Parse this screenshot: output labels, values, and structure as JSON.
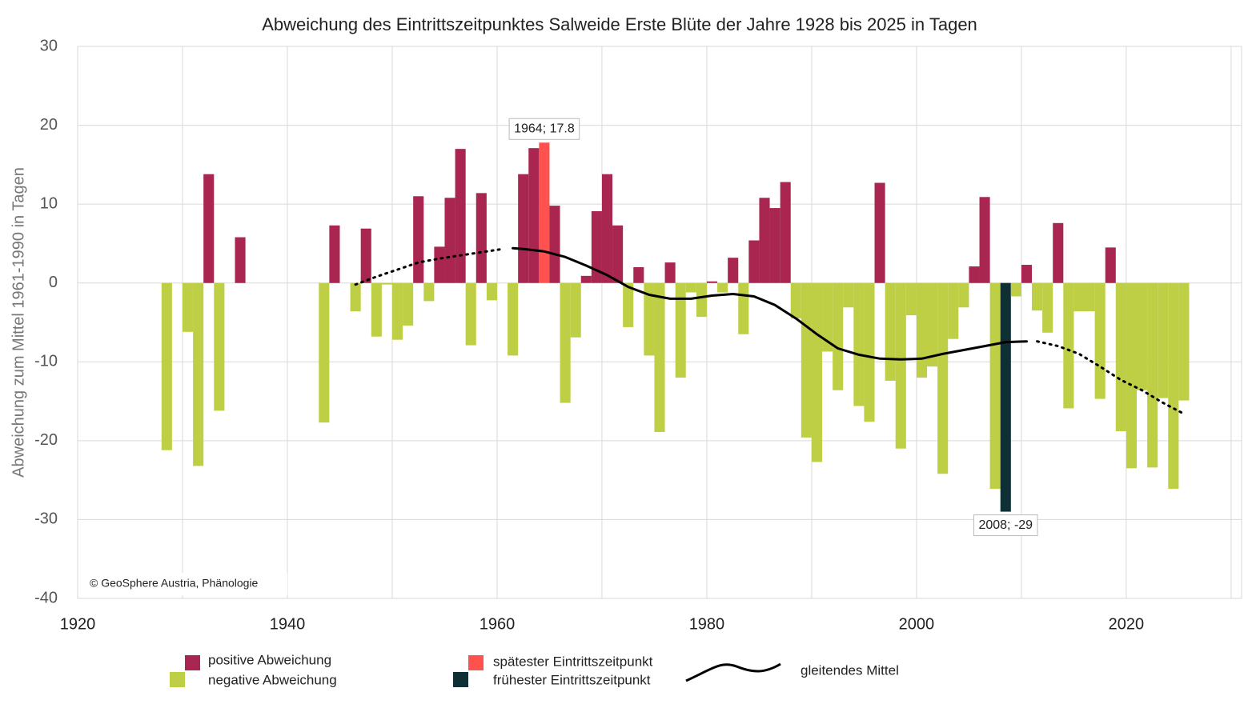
{
  "chart_data": {
    "type": "bar",
    "title": "Abweichung des Eintrittszeitpunktes Salweide Erste Blüte der Jahre 1928 bis 2025 in Tagen",
    "ylabel": "Abweichung zum Mittel 1961-1990 in Tagen",
    "credit": "© GeoSphere Austria, Phänologie",
    "x": [
      1928,
      1930,
      1931,
      1932,
      1933,
      1935,
      1943,
      1944,
      1946,
      1947,
      1948,
      1949,
      1950,
      1951,
      1952,
      1953,
      1954,
      1955,
      1956,
      1957,
      1958,
      1959,
      1961,
      1962,
      1963,
      1964,
      1965,
      1966,
      1967,
      1968,
      1969,
      1970,
      1971,
      1972,
      1973,
      1974,
      1975,
      1976,
      1977,
      1978,
      1979,
      1980,
      1981,
      1982,
      1983,
      1984,
      1985,
      1986,
      1987,
      1988,
      1989,
      1990,
      1991,
      1992,
      1993,
      1994,
      1995,
      1996,
      1997,
      1998,
      1999,
      2000,
      2001,
      2002,
      2003,
      2004,
      2005,
      2006,
      2007,
      2008,
      2009,
      2010,
      2011,
      2012,
      2013,
      2014,
      2015,
      2016,
      2017,
      2018,
      2019,
      2020,
      2021,
      2022,
      2023,
      2024,
      2025
    ],
    "values": [
      -21.2,
      -6.2,
      -23.2,
      13.8,
      -16.2,
      5.8,
      -17.7,
      7.3,
      -3.6,
      6.9,
      -6.8,
      -0.2,
      -7.2,
      -5.4,
      11.0,
      -2.3,
      4.6,
      10.8,
      17.0,
      -7.9,
      11.4,
      -2.2,
      -9.2,
      13.8,
      17.1,
      17.8,
      9.8,
      -15.2,
      -6.9,
      0.9,
      9.1,
      13.8,
      7.3,
      -5.6,
      2.0,
      -9.2,
      -18.9,
      2.6,
      -12.0,
      -1.2,
      -4.3,
      0.2,
      -1.2,
      3.2,
      -6.5,
      5.4,
      10.8,
      9.5,
      12.8,
      -4.5,
      -19.6,
      -22.7,
      -8.7,
      -13.6,
      -3.1,
      -15.6,
      -17.6,
      12.7,
      -12.4,
      -21.0,
      -4.1,
      -12.0,
      -10.6,
      -24.2,
      -7.1,
      -3.1,
      2.1,
      10.9,
      -26.1,
      -29,
      -1.7,
      2.3,
      -3.5,
      -6.3,
      7.6,
      -15.9,
      -3.6,
      -3.6,
      -14.7,
      4.5,
      -18.8,
      -23.5,
      -13.6,
      -23.4,
      -14.6,
      -26.1,
      -14.9
    ],
    "highlights": [
      {
        "label": "1964; 17.8",
        "x": 1964,
        "value": 17.8,
        "color": "#ff524f"
      },
      {
        "label": "2008; -29",
        "x": 2008,
        "value": -29,
        "color": "#0e2f34"
      }
    ],
    "moving_average": {
      "name": "gleitendes Mittel",
      "color": "#000000",
      "segments": [
        {
          "style": "dotted",
          "x": [
            1946,
            1948,
            1950,
            1952,
            1954,
            1956,
            1958,
            1960
          ],
          "values": [
            -0.2,
            0.8,
            1.7,
            2.6,
            3.1,
            3.5,
            3.9,
            4.3
          ]
        },
        {
          "style": "solid",
          "x": [
            1961,
            1962,
            1964,
            1966,
            1968,
            1970,
            1972,
            1974,
            1976,
            1978,
            1980,
            1982,
            1984,
            1986,
            1988,
            1990,
            1992,
            1994,
            1996,
            1998,
            2000,
            2002,
            2004,
            2006,
            2008,
            2010
          ],
          "values": [
            4.4,
            4.3,
            4.0,
            3.3,
            2.2,
            1.0,
            -0.5,
            -1.5,
            -2.0,
            -2.0,
            -1.6,
            -1.4,
            -1.7,
            -2.8,
            -4.5,
            -6.5,
            -8.3,
            -9.1,
            -9.6,
            -9.7,
            -9.6,
            -9.0,
            -8.5,
            -8.0,
            -7.5,
            -7.4
          ]
        },
        {
          "style": "dotted",
          "x": [
            2011,
            2013,
            2015,
            2017,
            2019,
            2021,
            2023,
            2025
          ],
          "values": [
            -7.4,
            -8.0,
            -9.0,
            -10.6,
            -12.3,
            -13.6,
            -15.2,
            -16.6
          ]
        }
      ]
    },
    "legend": [
      {
        "label": "positive Abweichung",
        "color": "#a8264f"
      },
      {
        "label": "negative Abweichung",
        "color": "#bfcf45"
      },
      {
        "label": "spätester Eintrittszeitpunkt",
        "color": "#ff524f"
      },
      {
        "label": "frühester Eintrittszeitpunkt",
        "color": "#0e2f34"
      }
    ],
    "xlim": [
      1920,
      2031
    ],
    "ylim": [
      -40,
      30
    ],
    "xticks": [
      1920,
      1940,
      1960,
      1980,
      2000,
      2020
    ],
    "x_minor_ticks": [
      1930,
      1950,
      1970,
      1990,
      2010,
      2030
    ],
    "yticks": [
      -40,
      -30,
      -20,
      -10,
      0,
      10,
      20,
      30
    ],
    "grid": true
  }
}
